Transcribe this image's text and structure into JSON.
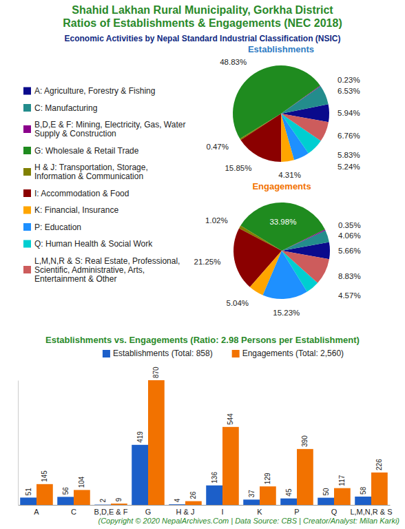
{
  "header": {
    "title": [
      "Shahid Lakhan Rural Municipality, Gorkha District",
      "Ratios of Establishments & Engagements (NEC 2018)"
    ],
    "subtitle": "Economic Activities by Nepal Standard Industrial Classification (NSIC)"
  },
  "chart_data": [
    {
      "type": "pie",
      "title": "Establishments",
      "categories": [
        "A: Agriculture, Forestry & Fishing",
        "C: Manufacturing",
        "B,D,E & F: Mining, Electricity, Gas, Water Supply & Construction",
        "G: Wholesale & Retail Trade",
        "H & J: Transportation, Storage, Information & Communication",
        "I: Accommodation & Food",
        "K: Financial, Insurance",
        "P: Education",
        "Q: Human Health & Social Work",
        "L,M,N,R & S: Real Estate, Professional, Scientific, Administrative, Arts, Entertainment & Other"
      ],
      "values": [
        5.94,
        6.53,
        0.23,
        48.83,
        0.47,
        15.85,
        4.31,
        5.24,
        5.83,
        6.76
      ],
      "value_labels": [
        "5.94%",
        "6.53%",
        "0.23%",
        "48.83%",
        "0.47%",
        "15.85%",
        "4.31%",
        "5.24%",
        "5.83%",
        "6.76%"
      ],
      "colors": [
        "#0a0a8c",
        "#238c8c",
        "#8b008b",
        "#1f8b1f",
        "#808000",
        "#8b0000",
        "#ffa500",
        "#1e90ff",
        "#00ced1",
        "#cd5c5c"
      ],
      "data_labels": true,
      "legend": "left"
    },
    {
      "type": "pie",
      "title": "Engagements",
      "categories": [
        "A: Agriculture, Forestry & Fishing",
        "C: Manufacturing",
        "B,D,E & F: Mining, Electricity, Gas, Water Supply & Construction",
        "G: Wholesale & Retail Trade",
        "H & J: Transportation, Storage, Information & Communication",
        "I: Accommodation & Food",
        "K: Financial, Insurance",
        "P: Education",
        "Q: Human Health & Social Work",
        "L,M,N,R & S: Real Estate, Professional, Scientific, Administrative, Arts, Entertainment & Other"
      ],
      "values": [
        5.66,
        4.06,
        0.35,
        33.98,
        1.02,
        21.25,
        5.04,
        15.23,
        4.57,
        8.83
      ],
      "value_labels": [
        "5.66%",
        "4.06%",
        "0.35%",
        "33.98%",
        "1.02%",
        "21.25%",
        "5.04%",
        "15.23%",
        "4.57%",
        "8.83%"
      ],
      "colors": [
        "#0a0a8c",
        "#238c8c",
        "#8b008b",
        "#1f8b1f",
        "#808000",
        "#8b0000",
        "#ffa500",
        "#1e90ff",
        "#00ced1",
        "#cd5c5c"
      ],
      "data_labels": true
    },
    {
      "type": "bar",
      "title": "Establishments vs. Engagements (Ratio: 2.98 Persons per Establishment)",
      "categories": [
        "A",
        "C",
        "B,D,E & F",
        "G",
        "H & J",
        "I",
        "K",
        "P",
        "Q",
        "L,M,N,R & S"
      ],
      "series": [
        {
          "name": "Establishments (Total: 858)",
          "color": "#1c5fc9",
          "values": [
            51,
            56,
            2,
            419,
            4,
            136,
            37,
            45,
            50,
            58
          ]
        },
        {
          "name": "Engagements (Total: 2,560)",
          "color": "#f27200",
          "values": [
            145,
            104,
            9,
            870,
            26,
            544,
            129,
            390,
            117,
            226
          ]
        }
      ],
      "ylim": [
        0,
        870
      ],
      "yticks": [],
      "data_labels": true,
      "legend": "top",
      "tick_labels": "x",
      "grid": false
    }
  ],
  "footer": "(Copyright © 2020 NepalArchives.Com | Data Source: CBS | Creator/Analyst: Milan Karki)"
}
